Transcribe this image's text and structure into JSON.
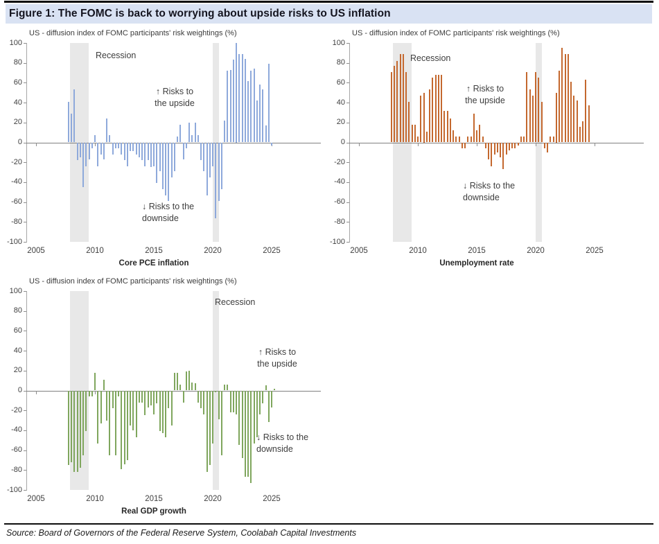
{
  "page": {
    "title": "Figure 1: The FOMC is back to worrying about upside risks to US inflation",
    "source": "Source: Board of Governors of the Federal Reserve System, Coolabah Capital Investments"
  },
  "colors": {
    "title_band_bg": "#d9e2f3",
    "blue_bars": "#8ea9db",
    "orange_bars": "#c4682e",
    "green_bars": "#7fa65d",
    "recession_band": "#e8e8e8",
    "axis": "#808080"
  },
  "chart_data": [
    {
      "type": "bar",
      "title": "US - diffusion index of FOMC participants' risk weightings (%)",
      "xlabel": "Core PCE inflation",
      "color": "#8ea9db",
      "ylim": [
        -100,
        100
      ],
      "ytick_step": 20,
      "xticks": [
        2005,
        2010,
        2015,
        2020,
        2025
      ],
      "grid": false,
      "x_start": 2007.75,
      "x_step": 0.25,
      "values": [
        41,
        29,
        53,
        -18,
        -15,
        -45,
        -24,
        -17,
        -6,
        7,
        -24,
        -12,
        -17,
        24,
        7,
        -12,
        -6,
        -6,
        -12,
        -18,
        -24,
        -9,
        -9,
        -12,
        -15,
        -18,
        -24,
        -18,
        -25,
        -24,
        -41,
        -29,
        -47,
        -53,
        -59,
        -35,
        -29,
        6,
        18,
        -17,
        -6,
        20,
        7,
        20,
        7,
        -18,
        -29,
        -53,
        -35,
        -24,
        -76,
        -59,
        -47,
        22,
        72,
        73,
        83,
        100,
        89,
        89,
        84,
        62,
        72,
        74,
        42,
        58,
        53,
        17,
        79,
        -3
      ],
      "recession_bands": [
        [
          2007.9,
          2009.5
        ],
        [
          2020.0,
          2020.5
        ]
      ],
      "annotations": {
        "recession": "Recession",
        "upside": [
          "↑ Risks to",
          "the upside"
        ],
        "downside": [
          "↓ Risks to the",
          "downside"
        ]
      },
      "labels_pos": {
        "recession": [
          100,
          10
        ],
        "upside": [
          214,
          62
        ],
        "downside": [
          167,
          228
        ]
      }
    },
    {
      "type": "bar",
      "title": "US - diffusion index of FOMC participants' risk weightings (%)",
      "xlabel": "Unemployment rate",
      "color": "#c4682e",
      "ylim": [
        -100,
        100
      ],
      "ytick_step": 20,
      "xticks": [
        2005,
        2010,
        2015,
        2020,
        2025
      ],
      "grid": false,
      "x_start": 2007.75,
      "x_step": 0.25,
      "values": [
        71,
        77,
        82,
        89,
        89,
        71,
        41,
        18,
        18,
        6,
        47,
        50,
        11,
        53,
        65,
        68,
        68,
        68,
        32,
        32,
        24,
        12,
        6,
        6,
        -6,
        -6,
        6,
        6,
        29,
        12,
        18,
        6,
        -6,
        -17,
        -24,
        -12,
        -10,
        -15,
        -27,
        -12,
        -8,
        -6,
        -6,
        -3,
        6,
        6,
        71,
        53,
        47,
        71,
        65,
        41,
        -6,
        -10,
        6,
        6,
        50,
        72,
        95,
        89,
        89,
        61,
        47,
        42,
        16,
        21,
        63,
        37
      ],
      "recession_bands": [
        [
          2007.9,
          2009.5
        ],
        [
          2020.0,
          2020.5
        ]
      ],
      "annotations": {
        "recession": "Recession",
        "upside": [
          "↑ Risks to",
          "the upside"
        ],
        "downside": [
          "↓ Risks to the",
          "downside"
        ]
      },
      "labels_pos": {
        "recession": [
          88,
          14
        ],
        "upside": [
          196,
          58
        ],
        "downside": [
          164,
          198
        ]
      }
    },
    {
      "type": "bar",
      "title": "US - diffusion index of FOMC participants' risk weightings (%)",
      "xlabel": "Real GDP growth",
      "color": "#7fa65d",
      "ylim": [
        -100,
        100
      ],
      "ytick_step": 20,
      "xticks": [
        2005,
        2010,
        2015,
        2020,
        2025
      ],
      "grid": false,
      "x_start": 2007.75,
      "x_step": 0.25,
      "values": [
        -75,
        -72,
        -82,
        -82,
        -78,
        -65,
        -41,
        -6,
        -6,
        18,
        -53,
        -33,
        11,
        -30,
        -65,
        -18,
        -65,
        -6,
        -79,
        -74,
        -70,
        -35,
        -40,
        -47,
        -12,
        -12,
        -25,
        -17,
        -15,
        -24,
        -13,
        -41,
        -43,
        -47,
        -18,
        -35,
        18,
        18,
        6,
        -12,
        19,
        20,
        8,
        7,
        -12,
        -18,
        -24,
        -82,
        -75,
        -53,
        -2,
        -29,
        -65,
        6,
        6,
        -22,
        -22,
        -24,
        -55,
        -68,
        -87,
        -87,
        -93,
        -53,
        -47,
        -24,
        -13,
        5,
        -32,
        -17,
        2
      ],
      "recession_bands": [
        [
          2007.9,
          2009.5
        ],
        [
          2020.0,
          2020.5
        ]
      ],
      "annotations": {
        "recession": "Recession",
        "upside": [
          "↑ Risks to",
          "the upside"
        ],
        "downside": [
          "↓ Risks to the",
          "downside"
        ]
      },
      "labels_pos": {
        "recession": [
          272,
          8
        ],
        "upside": [
          362,
          80
        ],
        "downside": [
          332,
          203
        ]
      }
    }
  ]
}
